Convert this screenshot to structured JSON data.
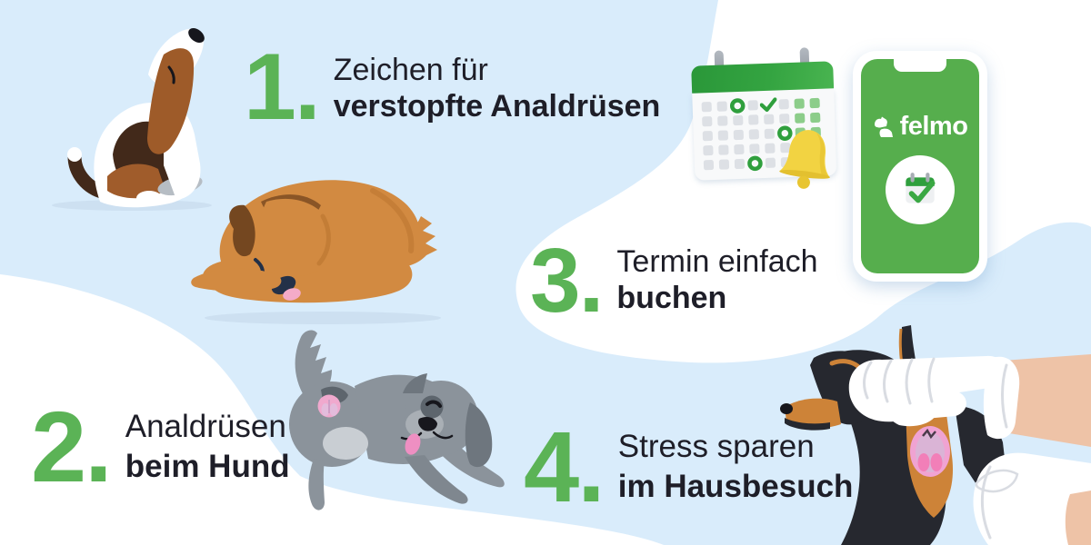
{
  "steps": [
    {
      "number": "1.",
      "line1": "Zeichen für",
      "line2": "verstopfte Analdrüsen"
    },
    {
      "number": "2.",
      "line1": "Analdrüsen",
      "line2": "beim Hund"
    },
    {
      "number": "3.",
      "line1": "Termin einfach",
      "line2": "buchen"
    },
    {
      "number": "4.",
      "line1": "Stress sparen",
      "line2": "im Hausbesuch"
    }
  ],
  "phone": {
    "brand": "felmo"
  },
  "calendar": {
    "grid": [
      [
        "gray",
        "gray",
        "ring",
        "gray",
        "check",
        "gray",
        "green",
        "green"
      ],
      [
        "gray",
        "gray",
        "gray",
        "gray",
        "gray",
        "gray",
        "green",
        "green"
      ],
      [
        "gray",
        "gray",
        "gray",
        "gray",
        "gray",
        "ring",
        "green",
        "green"
      ],
      [
        "gray",
        "gray",
        "gray",
        "gray",
        "gray",
        "gray",
        "gray",
        "green"
      ],
      [
        "gray",
        "gray",
        "gray",
        "ring",
        "gray",
        "gray",
        "green",
        "gray"
      ]
    ]
  },
  "illustrations": [
    "beagle-scooting-on-floor",
    "brown-dog-licking-rear",
    "grey-dog-showing-anal-glands",
    "calendar-with-reminder-bell",
    "smartphone-with-felmo-booking-app",
    "vet-hands-checking-dachshund-anal-glands"
  ],
  "colors": {
    "background_blue": "#d9ecfb",
    "blob_white": "#ffffff",
    "accent_green": "#5bb356",
    "text_dark": "#1e1e28",
    "phone_green": "#56ae4d",
    "calendar_green": "#2f9f3d",
    "calendar_cell_green": "#8ccd8a",
    "calendar_cell_gray": "#dde0e5",
    "bell_yellow": "#f2d342",
    "gland_pink": "#f0a3d2"
  }
}
